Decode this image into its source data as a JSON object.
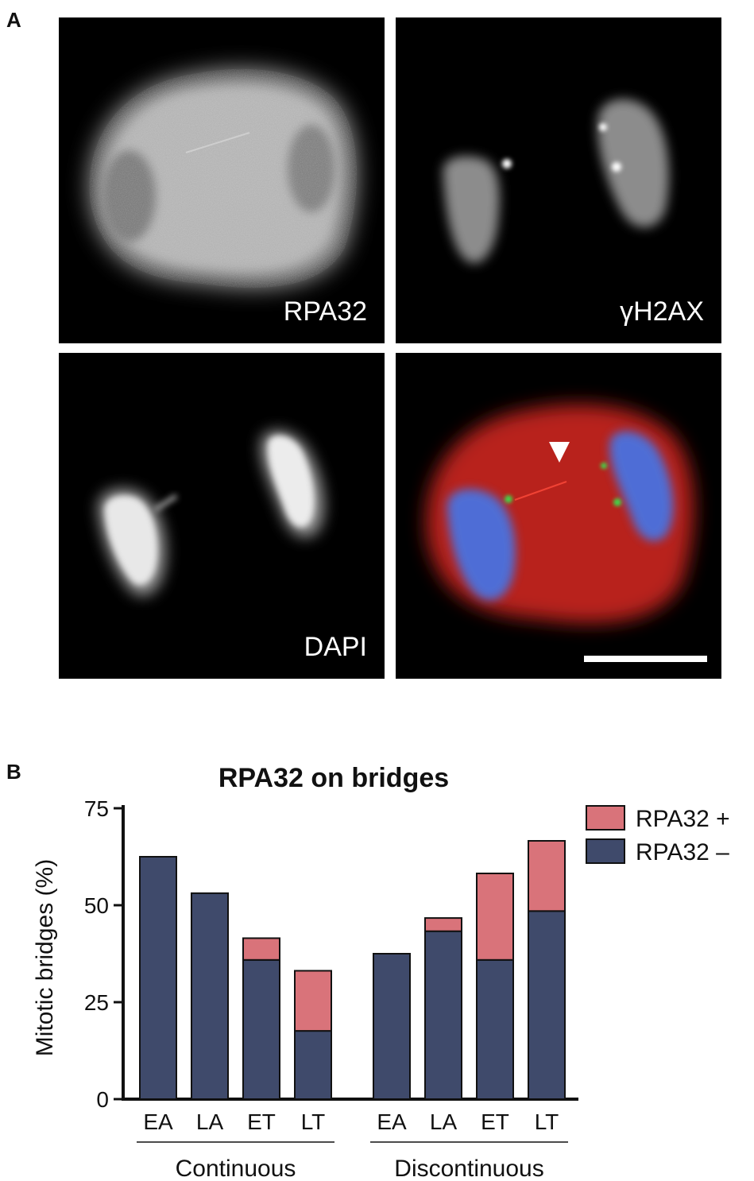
{
  "figure": {
    "panel_a_letter": "A",
    "panel_b_letter": "B"
  },
  "panel_a": {
    "labels": {
      "rpa32": "RPA32",
      "gh2ax": "γH2AX",
      "dapi": "DAPI"
    },
    "colors": {
      "rpa_channel": "#d8261f",
      "gh2ax_channel": "#3fd84a",
      "dapi_channel": "#4a72e0",
      "arrowhead": "#ffffff",
      "scale_bar": "#ffffff"
    }
  },
  "chart_data": {
    "type": "bar",
    "stacked": true,
    "title": "RPA32 on bridges",
    "ylabel": "Mitotic bridges (%)",
    "xlabel": "",
    "ylim": [
      0,
      75
    ],
    "yticks": [
      0,
      25,
      50,
      75
    ],
    "categories": [
      "EA",
      "LA",
      "ET",
      "LT",
      "EA",
      "LA",
      "ET",
      "LT"
    ],
    "groups": [
      {
        "label": "Continuous",
        "indices": [
          0,
          1,
          2,
          3
        ]
      },
      {
        "label": "Discontinuous",
        "indices": [
          4,
          5,
          6,
          7
        ]
      }
    ],
    "series": [
      {
        "name": "RPA32 –",
        "color": "#3f4a6b",
        "values": [
          62.5,
          53.1,
          35.9,
          17.6,
          37.5,
          43.3,
          35.9,
          48.5
        ]
      },
      {
        "name": "RPA32 +",
        "color": "#d9737a",
        "values": [
          0,
          0,
          5.6,
          15.5,
          0,
          3.4,
          22.3,
          18.1
        ]
      }
    ],
    "legend_position": "top-right",
    "grid": false
  }
}
